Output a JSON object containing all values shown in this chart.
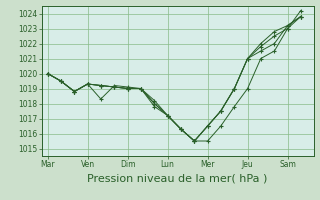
{
  "background_color": "#cce0cc",
  "plot_bg_color": "#d8ede8",
  "grid_color": "#88bb88",
  "line_color": "#2a602a",
  "xlabel": "Pression niveau de la mer( hPa )",
  "xlabel_fontsize": 8,
  "ylim": [
    1014.5,
    1024.5
  ],
  "yticks": [
    1015,
    1016,
    1017,
    1018,
    1019,
    1020,
    1021,
    1022,
    1023,
    1024
  ],
  "xtick_labels": [
    "Mar",
    "Ven",
    "Dim",
    "Lun",
    "Mer",
    "Jeu",
    "Sam"
  ],
  "xtick_positions": [
    0,
    1,
    2,
    3,
    4,
    5,
    6
  ],
  "xlim": [
    -0.15,
    6.65
  ],
  "series": [
    {
      "x": [
        0.0,
        0.33,
        0.67,
        1.0,
        1.33,
        1.67,
        2.0,
        2.33,
        2.67,
        3.0,
        3.33,
        3.67,
        4.0,
        4.33,
        4.67,
        5.0,
        5.33,
        5.67,
        6.0,
        6.33
      ],
      "y": [
        1020.0,
        1019.5,
        1018.8,
        1019.3,
        1018.3,
        1019.2,
        1019.1,
        1019.0,
        1017.8,
        1017.2,
        1016.3,
        1015.5,
        1015.5,
        1016.5,
        1017.8,
        1019.0,
        1021.0,
        1021.5,
        1023.0,
        1023.8
      ]
    },
    {
      "x": [
        0.0,
        0.33,
        0.67,
        1.0,
        1.33,
        1.67,
        2.0,
        2.33,
        2.67,
        3.0,
        3.33,
        3.67,
        4.0,
        4.33,
        4.67,
        5.0,
        5.33,
        5.67,
        6.0,
        6.33
      ],
      "y": [
        1020.0,
        1019.5,
        1018.8,
        1019.3,
        1019.2,
        1019.1,
        1019.0,
        1019.0,
        1018.0,
        1017.2,
        1016.3,
        1015.5,
        1016.5,
        1017.5,
        1019.0,
        1021.0,
        1021.5,
        1022.0,
        1023.2,
        1023.8
      ]
    },
    {
      "x": [
        0.0,
        0.33,
        0.67,
        1.0,
        1.33,
        1.67,
        2.0,
        2.33,
        2.67,
        3.0,
        3.33,
        3.67,
        4.0,
        4.33,
        4.67,
        5.0,
        5.33,
        5.67,
        6.0,
        6.33
      ],
      "y": [
        1020.0,
        1019.5,
        1018.8,
        1019.3,
        1019.2,
        1019.1,
        1019.0,
        1019.0,
        1018.2,
        1017.2,
        1016.3,
        1015.5,
        1016.5,
        1017.5,
        1019.0,
        1021.0,
        1021.8,
        1022.5,
        1023.0,
        1024.2
      ]
    },
    {
      "x": [
        0.0,
        0.33,
        0.67,
        1.0,
        1.33,
        1.67,
        2.0,
        2.33,
        2.67,
        3.0,
        3.33,
        3.67,
        4.0,
        4.33,
        4.67,
        5.0,
        5.33,
        5.67,
        6.0,
        6.33
      ],
      "y": [
        1020.0,
        1019.5,
        1018.8,
        1019.3,
        1019.2,
        1019.1,
        1019.0,
        1019.0,
        1018.0,
        1017.2,
        1016.3,
        1015.5,
        1016.5,
        1017.5,
        1019.0,
        1021.0,
        1022.0,
        1022.8,
        1023.2,
        1023.8
      ]
    }
  ]
}
